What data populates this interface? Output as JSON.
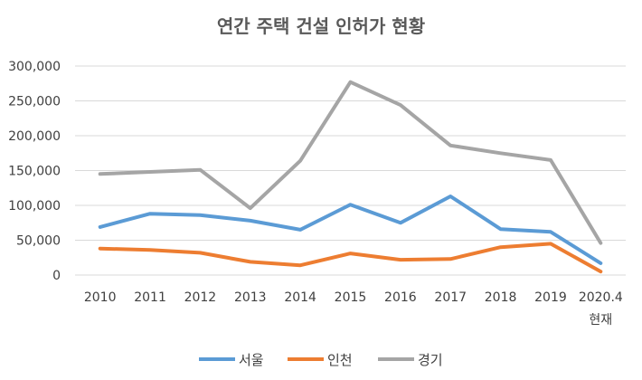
{
  "chart_data": {
    "type": "line",
    "title": "연간 주택 건설 인허가 현황",
    "categories": [
      "2010",
      "2011",
      "2012",
      "2013",
      "2014",
      "2015",
      "2016",
      "2017",
      "2018",
      "2019",
      "2020.4"
    ],
    "category_sublabels": [
      "",
      "",
      "",
      "",
      "",
      "",
      "",
      "",
      "",
      "",
      "현재"
    ],
    "y_ticks": [
      "0",
      "50,000",
      "100,000",
      "150,000",
      "200,000",
      "250,000",
      "300,000"
    ],
    "ylim": [
      0,
      300000
    ],
    "grid": true,
    "legend_position": "bottom",
    "series": [
      {
        "name": "서울",
        "color": "#5b9bd5",
        "values": [
          69000,
          88000,
          86000,
          78000,
          65000,
          101000,
          75000,
          113000,
          66000,
          62000,
          17000
        ]
      },
      {
        "name": "인천",
        "color": "#ed7d31",
        "values": [
          38000,
          36000,
          32000,
          19000,
          14000,
          31000,
          22000,
          23000,
          40000,
          45000,
          5000
        ]
      },
      {
        "name": "경기",
        "color": "#a5a5a5",
        "values": [
          145000,
          148000,
          151000,
          96000,
          164000,
          277000,
          244000,
          186000,
          175000,
          165000,
          46000
        ]
      }
    ]
  }
}
